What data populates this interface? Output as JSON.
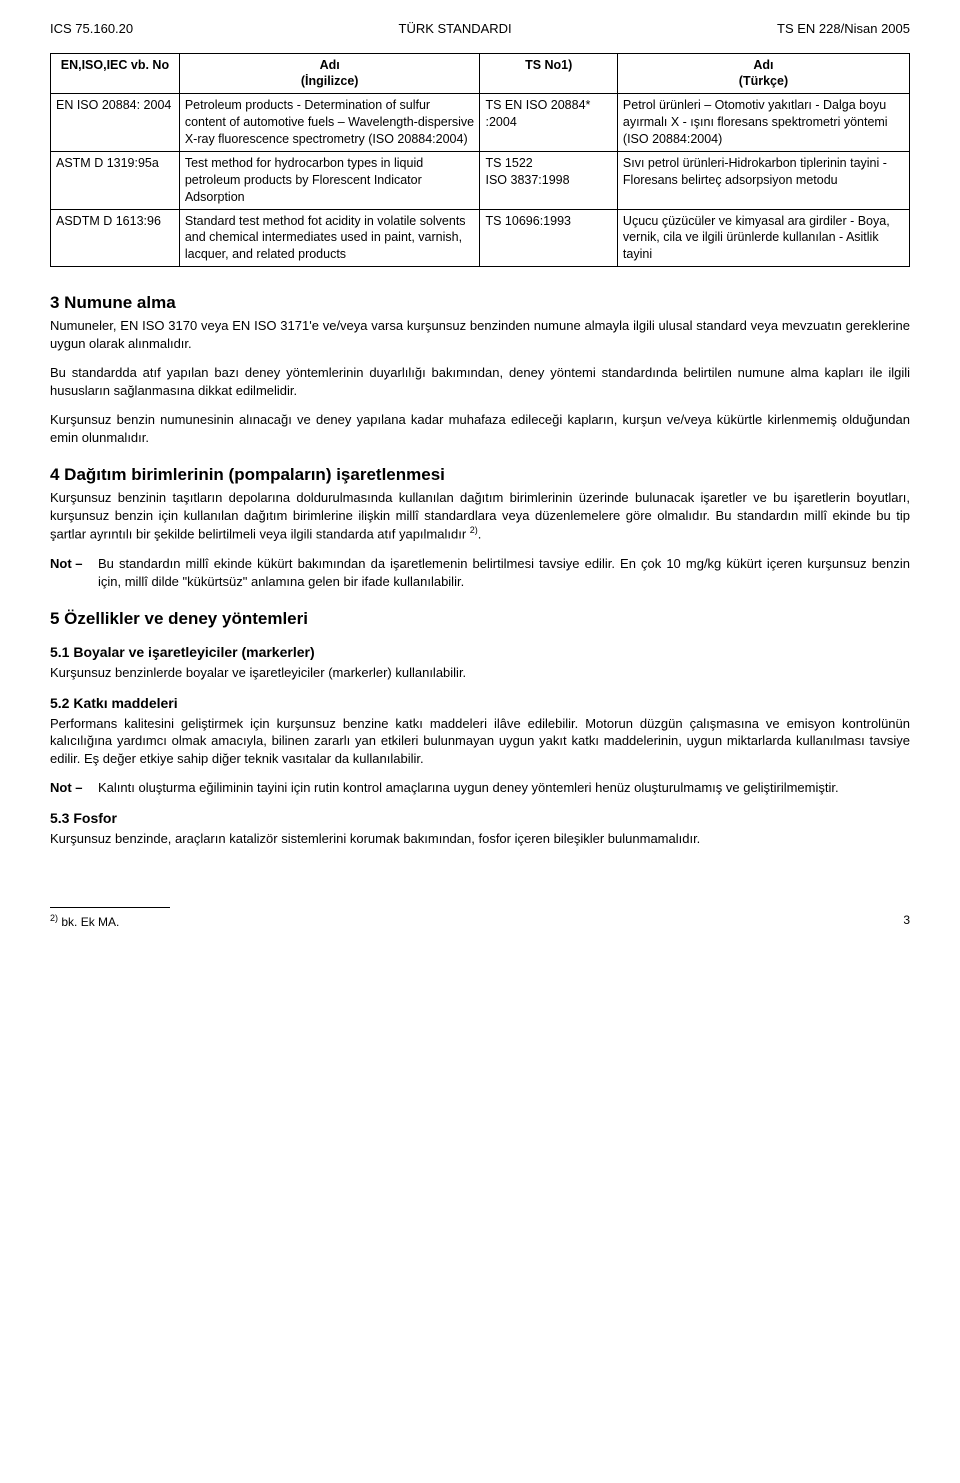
{
  "header": {
    "left": "ICS 75.160.20",
    "center": "TÜRK STANDARDI",
    "right": "TS EN 228/Nisan 2005"
  },
  "table": {
    "head": {
      "c1": "EN,ISO,IEC vb. No",
      "c2": "Adı\n(İngilizce)",
      "c3": "TS No1)",
      "c4": "Adı\n(Türkçe)"
    },
    "rows": [
      {
        "c1": "EN ISO 20884: 2004",
        "c2": "Petroleum products - Determination of sulfur content of automotive fuels – Wavelength-dispersive X-ray fluorescence spectrometry (ISO 20884:2004)",
        "c3": "TS EN ISO 20884* :2004",
        "c4": "Petrol ürünleri – Otomotiv yakıtları - Dalga boyu ayırmalı X - ışını floresans spektrometri yöntemi (ISO 20884:2004)"
      },
      {
        "c1": "ASTM D 1319:95a",
        "c2": "Test method for hydrocarbon types in liquid petroleum products by Florescent Indicator Adsorption",
        "c3": "TS 1522\nISO 3837:1998",
        "c4": "Sıvı petrol ürünleri-Hidrokarbon tiplerinin tayini -Floresans belirteç adsorpsiyon metodu"
      },
      {
        "c1": "ASDTM D 1613:96",
        "c2": "Standard test method fot acidity in volatile solvents and chemical intermediates used in paint, varnish, lacquer, and related products",
        "c3": "TS 10696:1993",
        "c4": "Uçucu çüzücüler ve kimyasal ara girdiler - Boya, vernik, cila ve ilgili ürünlerde kullanılan - Asitlik tayini"
      }
    ]
  },
  "sec3": {
    "title": "3    Numune alma",
    "p1": "Numuneler, EN ISO 3170 veya EN ISO 3171'e ve/veya varsa kurşunsuz benzinden numune almayla ilgili ulusal standard veya mevzuatın gereklerine uygun olarak alınmalıdır.",
    "p2": "Bu standardda atıf yapılan bazı deney yöntemlerinin duyarlılığı bakımından, deney yöntemi standardında belirtilen numune alma kapları ile ilgili hususların sağlanmasına dikkat edilmelidir.",
    "p3": "Kurşunsuz benzin numunesinin alınacağı ve deney yapılana kadar muhafaza edileceği kapların, kurşun ve/veya kükürtle kirlenmemiş olduğundan emin olunmalıdır."
  },
  "sec4": {
    "title": "4    Dağıtım birimlerinin (pompaların) işaretlenmesi",
    "p1a": "Kurşunsuz benzinin taşıtların depolarına doldurulmasında kullanılan dağıtım birimlerinin üzerinde bulunacak işaretler ve bu işaretlerin boyutları, kurşunsuz benzin için kullanılan dağıtım birimlerine ilişkin millî standardlara veya düzenlemelere göre olmalıdır. Bu standardın millî ekinde bu tip şartlar ayrıntılı bir şekilde belirtilmeli veya ilgili standarda atıf yapılmalıdır ",
    "p1sup": "2)",
    "p1b": ".",
    "noteLabel": "Not –",
    "noteText": "Bu standardın millî ekinde kükürt bakımından da işaretlemenin belirtilmesi tavsiye edilir. En çok 10 mg/kg kükürt içeren kurşunsuz benzin için, millî dilde \"kükürtsüz\" anlamına gelen bir ifade kullanılabilir."
  },
  "sec5": {
    "title": "5    Özellikler ve deney yöntemleri",
    "s51title": "5.1  Boyalar ve işaretleyiciler (markerler)",
    "s51p": "Kurşunsuz benzinlerde boyalar ve işaretleyiciler (markerler) kullanılabilir.",
    "s52title": "5.2  Katkı maddeleri",
    "s52p": "Performans kalitesini geliştirmek için kurşunsuz benzine katkı maddeleri ilâve edilebilir. Motorun düzgün çalışmasına ve emisyon kontrolünün kalıcılığına yardımcı olmak amacıyla, bilinen zararlı yan etkileri bulunmayan uygun yakıt katkı maddelerinin, uygun miktarlarda kullanılması tavsiye edilir. Eş değer etkiye sahip diğer teknik vasıtalar da kullanılabilir.",
    "noteLabel": "Not –",
    "noteText": "Kalıntı oluşturma eğiliminin tayini için rutin kontrol amaçlarına uygun deney yöntemleri henüz oluşturulmamış ve geliştirilmemiştir.",
    "s53title": "5.3  Fosfor",
    "s53p": "Kurşunsuz benzinde, araçların katalizör sistemlerini korumak bakımından, fosfor içeren bileşikler bulunmamalıdır."
  },
  "footnote": {
    "sup": "2)",
    "text": " bk. Ek MA."
  },
  "pagenum": "3"
}
